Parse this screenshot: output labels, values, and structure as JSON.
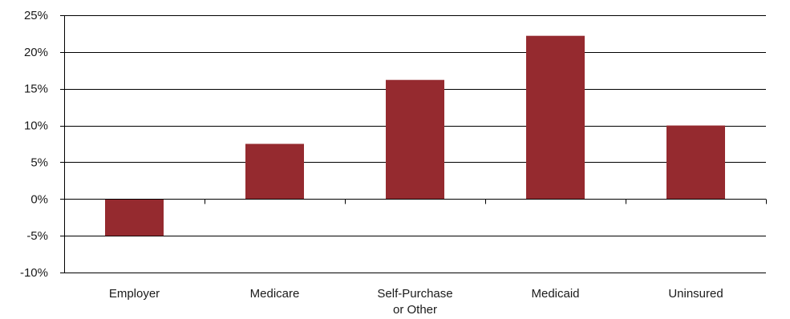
{
  "chart_data": {
    "type": "bar",
    "categories": [
      [
        "Employer"
      ],
      [
        "Medicare"
      ],
      [
        "Self-Purchase",
        "or Other"
      ],
      [
        "Medicaid"
      ],
      [
        "Uninsured"
      ]
    ],
    "values": [
      -5.0,
      7.5,
      16.2,
      22.2,
      10.0
    ],
    "ylim": [
      -10,
      25
    ],
    "ytick_values": [
      -10,
      -5,
      0,
      5,
      10,
      15,
      20,
      25
    ],
    "ytick_labels": [
      "-10%",
      "-5%",
      "0%",
      "5%",
      "10%",
      "15%",
      "20%",
      "25%"
    ],
    "grid": true,
    "bar_color": "#952a2f"
  }
}
